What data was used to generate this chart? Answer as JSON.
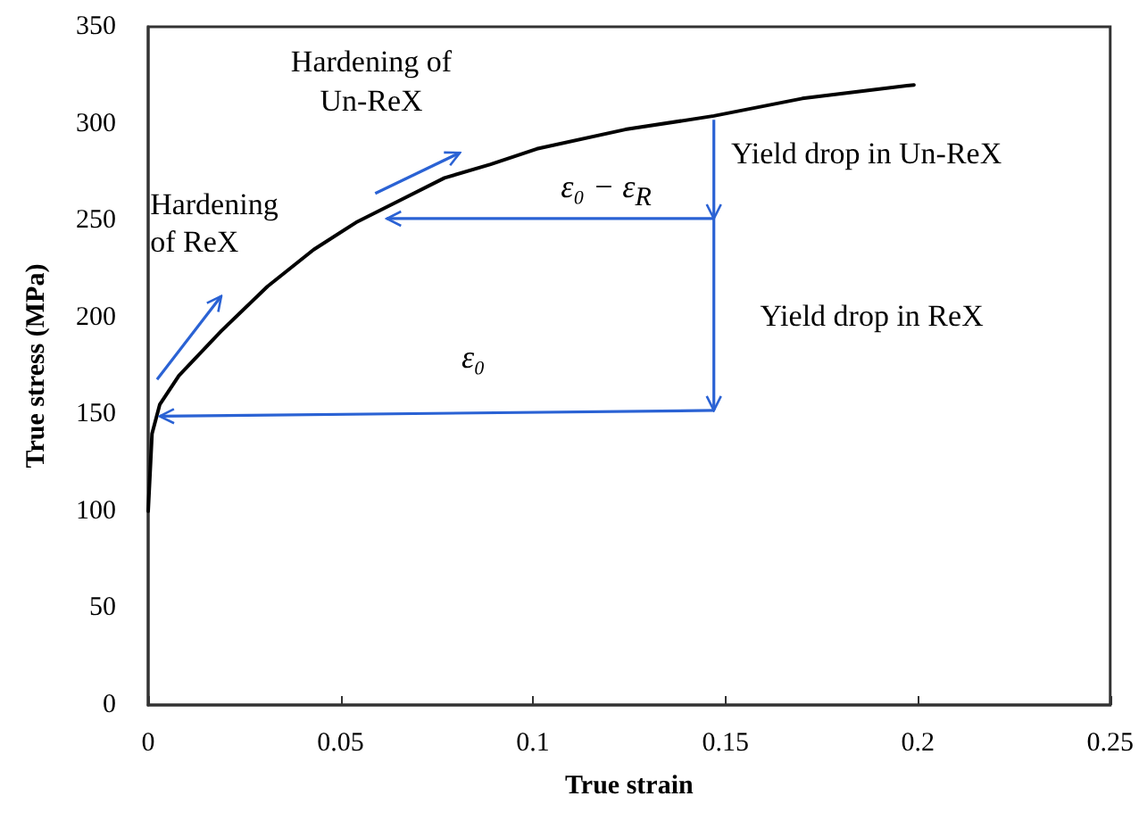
{
  "chart_data": {
    "type": "line",
    "xlabel": "True strain",
    "ylabel": "True stress (MPa)",
    "x": [
      0,
      0.001,
      0.003,
      0.008,
      0.019,
      0.031,
      0.043,
      0.054,
      0.066,
      0.077,
      0.089,
      0.101,
      0.124,
      0.147,
      0.17,
      0.199
    ],
    "series": [
      {
        "color": "#000000",
        "values": [
          100,
          140,
          155,
          170,
          193,
          216,
          235,
          249,
          261,
          272,
          279,
          287,
          297,
          304,
          313,
          320
        ]
      }
    ],
    "xlim": [
      0,
      0.25
    ],
    "xticks": [
      0,
      0.05,
      0.1,
      0.15,
      0.2,
      0.25
    ],
    "ylim": [
      0,
      350
    ],
    "yticks": [
      0,
      50,
      100,
      150,
      200,
      250,
      300,
      350
    ],
    "grid": false,
    "marker": "none",
    "line_style": "solid",
    "annotations": [
      "Hardening of Un-ReX",
      "Hardening of ReX",
      "Yield drop in Un-ReX",
      "Yield drop in ReX",
      "ε₀ − ε$_{R}$",
      "ε₀"
    ]
  }
}
